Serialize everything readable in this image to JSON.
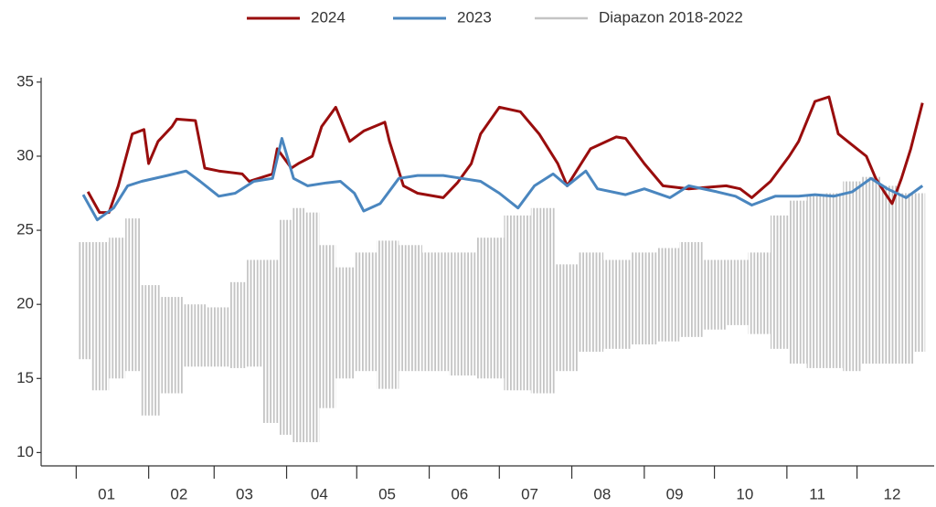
{
  "chart_data": {
    "type": "line",
    "xlim": [
      -14,
      368
    ],
    "ylim": [
      9.1,
      35.3
    ],
    "yticks": [
      10,
      15,
      20,
      25,
      30,
      35
    ],
    "xticks": [
      1,
      32,
      60,
      91,
      121,
      152,
      182,
      213,
      244,
      274,
      305,
      335
    ],
    "month_labels": [
      {
        "value": 14,
        "label": "01"
      },
      {
        "value": 45,
        "label": "02"
      },
      {
        "value": 73,
        "label": "03"
      },
      {
        "value": 105,
        "label": "04"
      },
      {
        "value": 134,
        "label": "05"
      },
      {
        "value": 165,
        "label": "06"
      },
      {
        "value": 195,
        "label": "07"
      },
      {
        "value": 226,
        "label": "08"
      },
      {
        "value": 257,
        "label": "09"
      },
      {
        "value": 287,
        "label": "10"
      },
      {
        "value": 318,
        "label": "11"
      },
      {
        "value": 350,
        "label": "12"
      }
    ],
    "grid": false,
    "legend": "top",
    "range": {
      "name": "Diapazon 2018-2022",
      "color": "#c4c4c4",
      "x": [
        4,
        11,
        19,
        25,
        32,
        42,
        52,
        62,
        71,
        77,
        85,
        91,
        96,
        102,
        108,
        116,
        124,
        135,
        143,
        155,
        166,
        178,
        190,
        201,
        211,
        221,
        232,
        244,
        255,
        263,
        275,
        283,
        294,
        302,
        310,
        317,
        325,
        333,
        341,
        350,
        356,
        363
      ],
      "low": [
        16.3,
        14.2,
        15,
        15.5,
        12.5,
        14,
        15.8,
        15.8,
        15.7,
        15.8,
        12,
        11.2,
        10.7,
        10.7,
        13,
        15,
        15.5,
        14.3,
        15.5,
        15.5,
        15.2,
        15,
        14.2,
        14,
        15.5,
        16.8,
        17,
        17.3,
        17.5,
        17.8,
        18.3,
        18.6,
        18,
        17,
        16,
        15.7,
        15.7,
        15.5,
        16,
        16,
        16,
        16.8
      ],
      "high": [
        24.2,
        24.2,
        24.5,
        25.8,
        21.3,
        20.5,
        20,
        19.8,
        21.5,
        23,
        23,
        25.7,
        26.5,
        26.2,
        24,
        22.5,
        23.5,
        24.3,
        24,
        23.5,
        23.5,
        24.5,
        26,
        26.5,
        22.7,
        23.5,
        23,
        23.5,
        23.8,
        24.2,
        23,
        23,
        23.5,
        26,
        27,
        27.3,
        27.5,
        28.3,
        28.6,
        28,
        27.5,
        27.5
      ]
    },
    "series": [
      {
        "name": "2024",
        "color": "#990d0d",
        "x": [
          6,
          11,
          15,
          19,
          25,
          30,
          32,
          36,
          42,
          44,
          52,
          56,
          62,
          72,
          75,
          85,
          87,
          93,
          96,
          102,
          106,
          112,
          118,
          124,
          133,
          135,
          141,
          147,
          158,
          164,
          170,
          174,
          182,
          191,
          199,
          207,
          211,
          215,
          221,
          232,
          236,
          244,
          252,
          263,
          279,
          285,
          290,
          298,
          306,
          310,
          317,
          323,
          327,
          335,
          339,
          343,
          347,
          350,
          354,
          358,
          363
        ],
        "values": [
          27.6,
          26.2,
          26.2,
          28,
          31.5,
          31.8,
          29.5,
          31,
          32,
          32.5,
          32.4,
          29.2,
          29,
          28.8,
          28.3,
          28.8,
          30.5,
          29.2,
          29.5,
          30,
          32,
          33.3,
          31,
          31.7,
          32.3,
          31,
          28,
          27.5,
          27.2,
          28.2,
          29.5,
          31.5,
          33.3,
          33,
          31.5,
          29.5,
          28,
          29,
          30.5,
          31.3,
          31.2,
          29.5,
          28,
          27.8,
          28,
          27.8,
          27.2,
          28.3,
          30,
          31,
          33.7,
          34,
          31.5,
          30.5,
          30,
          28.5,
          27.5,
          26.8,
          28.5,
          30.5,
          33.6
        ]
      },
      {
        "name": "2023",
        "color": "#4a86bf",
        "x": [
          4,
          10,
          17,
          23,
          29,
          40,
          48,
          54,
          62,
          69,
          77,
          85,
          89,
          94,
          100,
          108,
          114,
          120,
          124,
          131,
          139,
          147,
          158,
          166,
          174,
          182,
          190,
          197,
          205,
          211,
          219,
          224,
          236,
          244,
          255,
          263,
          275,
          283,
          290,
          300,
          310,
          317,
          325,
          333,
          341,
          348,
          356,
          363
        ],
        "values": [
          27.4,
          25.7,
          26.5,
          28,
          28.3,
          28.7,
          29,
          28.3,
          27.3,
          27.5,
          28.3,
          28.5,
          31.2,
          28.5,
          28,
          28.2,
          28.3,
          27.5,
          26.3,
          26.8,
          28.5,
          28.7,
          28.7,
          28.5,
          28.3,
          27.5,
          26.5,
          28,
          28.8,
          28,
          29,
          27.8,
          27.4,
          27.8,
          27.2,
          28,
          27.6,
          27.3,
          26.7,
          27.3,
          27.3,
          27.4,
          27.3,
          27.6,
          28.5,
          27.8,
          27.2,
          28
        ]
      }
    ]
  }
}
